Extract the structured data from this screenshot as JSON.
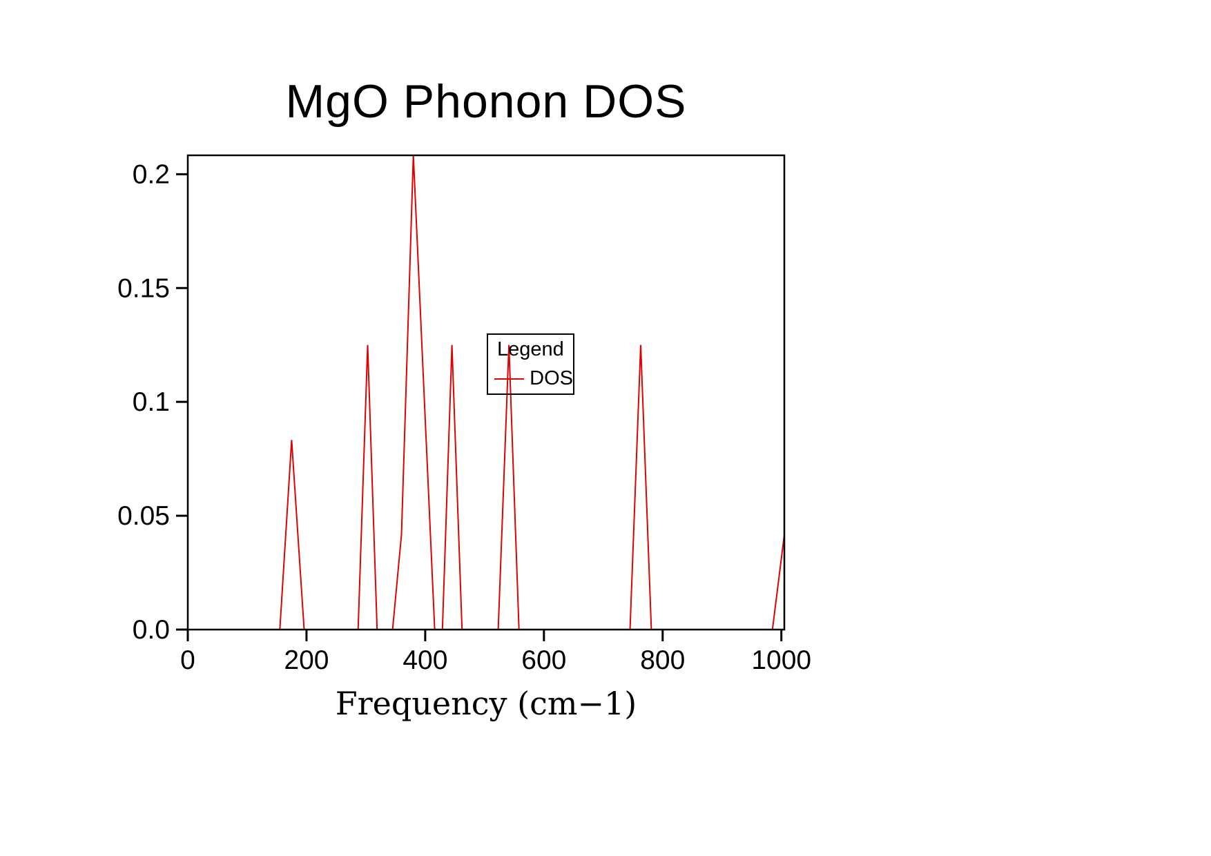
{
  "page": {
    "background_color": "#ffffff",
    "axis_color": "#000000"
  },
  "chart_data": {
    "type": "line",
    "title": "MgO Phonon DOS",
    "xlabel": "Frequency (cm−1)",
    "ylabel": "",
    "xlim": [
      0,
      1005
    ],
    "ylim": [
      0,
      0.2083
    ],
    "x_ticks": [
      0,
      200,
      400,
      600,
      800,
      1000
    ],
    "x_tick_labels": [
      "0",
      "200",
      "400",
      "600",
      "800",
      "1000"
    ],
    "y_ticks": [
      0,
      0.05,
      0.1,
      0.15,
      0.2
    ],
    "y_tick_labels": [
      "0.0",
      "0.05",
      "0.1",
      "0.15",
      "0.2"
    ],
    "grid": false,
    "legend": {
      "title": "Legend",
      "position": "center",
      "entries": [
        {
          "label": "DOS",
          "color": "#e00000"
        }
      ]
    },
    "series": [
      {
        "name": "DOS",
        "color": "#e00000",
        "points": [
          [
            0,
            0
          ],
          [
            155,
            0
          ],
          [
            175,
            0.0833
          ],
          [
            196,
            0
          ],
          [
            287,
            0
          ],
          [
            303,
            0.125
          ],
          [
            319,
            0
          ],
          [
            345,
            0
          ],
          [
            360,
            0.0417
          ],
          [
            380,
            0.2083
          ],
          [
            416,
            0
          ],
          [
            429,
            0
          ],
          [
            445,
            0.125
          ],
          [
            462,
            0
          ],
          [
            523,
            0
          ],
          [
            541,
            0.125
          ],
          [
            558,
            0
          ],
          [
            745,
            0
          ],
          [
            763,
            0.125
          ],
          [
            781,
            0
          ],
          [
            985,
            0
          ],
          [
            1005,
            0.0417
          ]
        ]
      }
    ]
  }
}
